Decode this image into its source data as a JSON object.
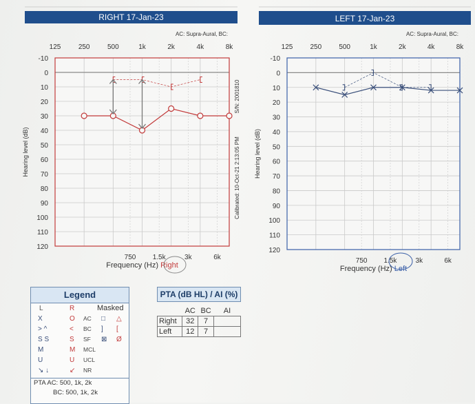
{
  "chart_data": [
    {
      "type": "scatter",
      "title": "RIGHT 17-Jan-23",
      "subtitle": "AC: Supra-Aural, BC:",
      "ylabel": "Hearing level (dB)",
      "xlabel": "Frequency (Hz)",
      "xlabel_suffix": "Right",
      "top_ticks": [
        "125",
        "250",
        "500",
        "1k",
        "2k",
        "4k",
        "8k"
      ],
      "bottom_ticks": [
        "750",
        "1.5k",
        "3k",
        "6k"
      ],
      "y_ticks": [
        -10,
        0,
        10,
        20,
        30,
        40,
        50,
        60,
        70,
        80,
        90,
        100,
        110,
        120
      ],
      "ylim": [
        -10,
        120
      ],
      "side_text": [
        "S/N: 2001810",
        "Calibrated: 10-Oct-21 2:13:05 PM"
      ],
      "series": [
        {
          "name": "AC",
          "color": "#c23a3a",
          "marker": "O",
          "x": [
            "250",
            "500",
            "1k",
            "2k",
            "4k",
            "8k"
          ],
          "y": [
            30,
            30,
            40,
            25,
            30,
            30
          ]
        },
        {
          "name": "BC",
          "color": "#c23a3a",
          "marker": "[",
          "x": [
            "500",
            "1k",
            "2k",
            "4k"
          ],
          "y": [
            5,
            5,
            10,
            5
          ]
        }
      ]
    },
    {
      "type": "scatter",
      "title": "LEFT 17-Jan-23",
      "subtitle": "AC: Supra-Aural, BC:",
      "ylabel": "Hearing level (dB)",
      "xlabel": "Frequency (Hz)",
      "xlabel_suffix": "Left",
      "top_ticks": [
        "125",
        "250",
        "500",
        "1k",
        "2k",
        "4k",
        "8k"
      ],
      "bottom_ticks": [
        "750",
        "1.5k",
        "3k",
        "6k"
      ],
      "y_ticks": [
        -10,
        0,
        10,
        20,
        30,
        40,
        50,
        60,
        70,
        80,
        90,
        100,
        110,
        120
      ],
      "ylim": [
        -10,
        120
      ],
      "series": [
        {
          "name": "AC",
          "color": "#3a4f7a",
          "marker": "X",
          "x": [
            "250",
            "500",
            "1k",
            "2k",
            "4k",
            "8k"
          ],
          "y": [
            10,
            15,
            10,
            10,
            12,
            12
          ]
        },
        {
          "name": "BC",
          "color": "#3a4f7a",
          "marker": "]",
          "x": [
            "500",
            "1k",
            "2k",
            "4k"
          ],
          "y": [
            10,
            0,
            10,
            10
          ]
        }
      ]
    }
  ],
  "legend": {
    "title": "Legend",
    "col_l": "L",
    "col_r": "R",
    "col_masked": "Masked",
    "rows": [
      {
        "l": "X",
        "r": "O",
        "label": "AC",
        "m1": "□",
        "m2": "△"
      },
      {
        "l": ">  ^",
        "r": "<",
        "label": "BC",
        "m1": "]",
        "m2": "["
      },
      {
        "l": "S  S",
        "r": "S",
        "label": "SF",
        "m1": "⊠",
        "m2": "Ø"
      },
      {
        "l": "M",
        "r": "M",
        "label": "MCL",
        "m1": "",
        "m2": ""
      },
      {
        "l": "U",
        "r": "U",
        "label": "UCL",
        "m1": "",
        "m2": ""
      },
      {
        "l": "↘  ↓",
        "r": "↙",
        "label": "NR",
        "m1": "",
        "m2": ""
      }
    ],
    "pta_line1": "PTA  AC: 500, 1k, 2k",
    "pta_line2": "BC: 500, 1k, 2k"
  },
  "pta_table": {
    "title": "PTA (dB HL) / AI (%)",
    "headers": [
      "AC",
      "BC",
      "AI"
    ],
    "rows": [
      {
        "ear": "Right",
        "ac": "32",
        "bc": "7",
        "ai": ""
      },
      {
        "ear": "Left",
        "ac": "12",
        "bc": "7",
        "ai": ""
      }
    ]
  }
}
